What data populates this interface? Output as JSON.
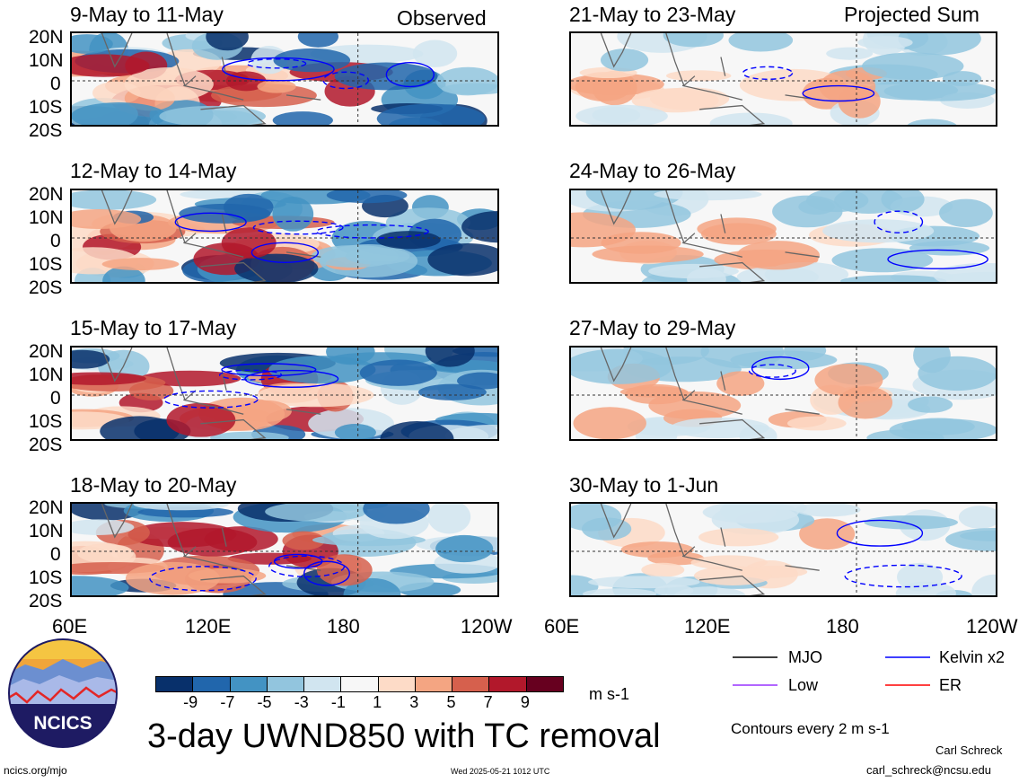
{
  "header": {
    "observed_label": "Observed",
    "projected_label": "Projected Sum"
  },
  "panels_left": [
    {
      "title": "9-May to 11-May"
    },
    {
      "title": "12-May to 14-May"
    },
    {
      "title": "15-May to 17-May"
    },
    {
      "title": "18-May to 20-May"
    }
  ],
  "panels_right": [
    {
      "title": "21-May to 23-May"
    },
    {
      "title": "24-May to 26-May"
    },
    {
      "title": "27-May to 29-May"
    },
    {
      "title": "30-May to 1-Jun"
    }
  ],
  "lat_labels": [
    "20N",
    "10N",
    "0",
    "10S",
    "20S"
  ],
  "lon_labels": [
    "60E",
    "120E",
    "180",
    "120W"
  ],
  "colorbar": {
    "colors": [
      "#08306b",
      "#2166ac",
      "#4393c3",
      "#92c5de",
      "#d1e5f0",
      "#f7f7f7",
      "#fddbc7",
      "#f4a582",
      "#d6604d",
      "#b2182b",
      "#67001f"
    ],
    "tick_labels": [
      "-9",
      "-7",
      "-5",
      "-3",
      "-1",
      "1",
      "3",
      "5",
      "7",
      "9"
    ],
    "units": "m s-1"
  },
  "title": "3-day UWND850 with TC removal",
  "legend": {
    "items": [
      {
        "label": "MJO",
        "color": "#000000"
      },
      {
        "label": "Kelvin x2",
        "color": "#0000ff"
      },
      {
        "label": "Low",
        "color": "#9933ff"
      },
      {
        "label": "ER",
        "color": "#ff0000"
      }
    ],
    "contour_note": "Contours every 2 m s-1"
  },
  "logo": {
    "text": "NCICS"
  },
  "footer": {
    "url": "ncics.org/mjo",
    "timestamp": "Wed 2025-05-21 1012 UTC",
    "author": "Carl Schreck",
    "email": "carl_schreck@ncsu.edu"
  },
  "chart_data": {
    "type": "heatmap",
    "variable": "3-day UWND850 with TC removal",
    "units": "m s-1",
    "lat_range": [
      "20S",
      "20N"
    ],
    "lon_range": [
      "60E",
      "120W"
    ],
    "panels_observed": [
      "9-May to 11-May",
      "12-May to 14-May",
      "15-May to 17-May",
      "18-May to 20-May"
    ],
    "panels_projected": [
      "21-May to 23-May",
      "24-May to 26-May",
      "27-May to 29-May",
      "30-May to 1-Jun"
    ],
    "color_levels": [
      -9,
      -7,
      -5,
      -3,
      -1,
      1,
      3,
      5,
      7,
      9
    ]
  }
}
